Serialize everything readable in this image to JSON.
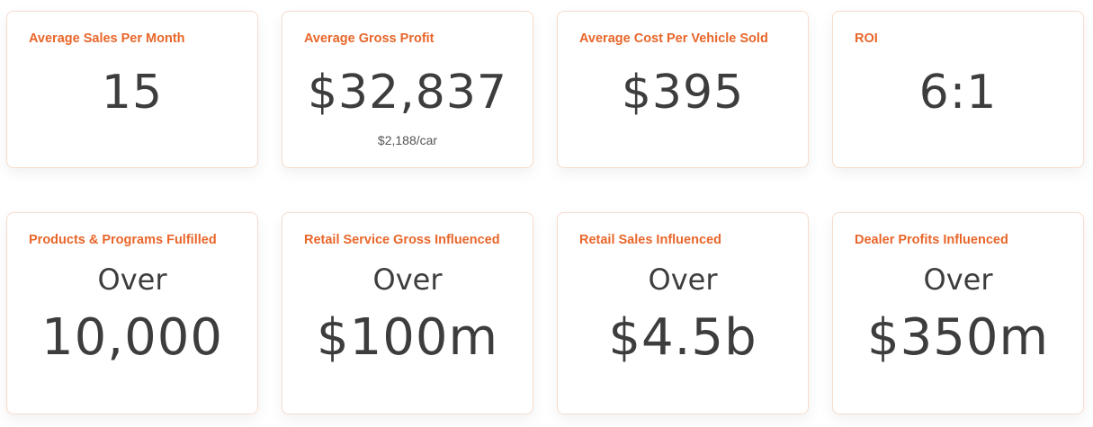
{
  "stats": [
    {
      "label": "Average Sales Per Month",
      "value": "15"
    },
    {
      "label": "Average Gross Profit",
      "value": "$32,837",
      "sub": "$2,188/car"
    },
    {
      "label": "Average Cost Per Vehicle Sold",
      "value": "$395"
    },
    {
      "label": "ROI",
      "value": "6:1"
    },
    {
      "label": "Products & Programs Fulfilled",
      "prefix": "Over",
      "value": "10,000"
    },
    {
      "label": "Retail Service Gross Influenced",
      "prefix": "Over",
      "value": "$100m"
    },
    {
      "label": "Retail Sales Influenced",
      "prefix": "Over",
      "value": "$4.5b"
    },
    {
      "label": "Dealer Profits Influenced",
      "prefix": "Over",
      "value": "$350m"
    }
  ],
  "colors": {
    "accent": "#e8662a",
    "text": "#3d3d3d",
    "card_border": "#f6dccb"
  }
}
